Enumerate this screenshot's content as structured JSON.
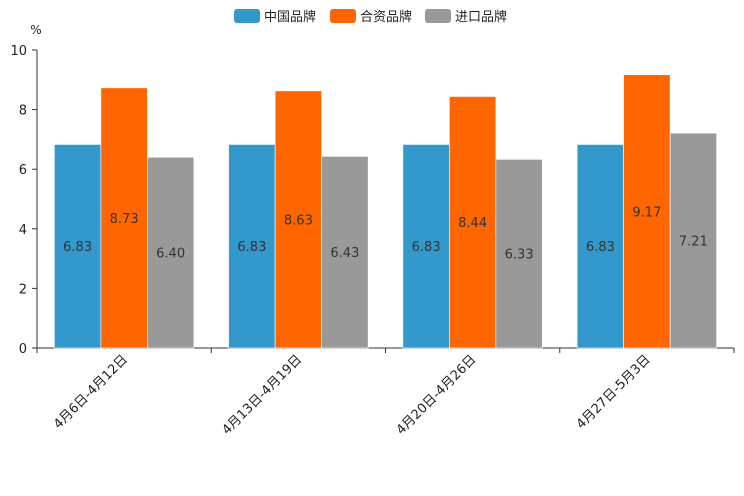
{
  "chart_data": {
    "type": "bar",
    "unit": "%",
    "categories": [
      "4月6日-4月12日",
      "4月13日-4月19日",
      "4月20日-4月26日",
      "4月27日-5月3日"
    ],
    "series": [
      {
        "name": "中国品牌",
        "color": "#3399cc",
        "values": [
          6.83,
          6.83,
          6.83,
          6.83
        ],
        "labels": [
          "6.83",
          "6.83",
          "6.83",
          "6.83"
        ]
      },
      {
        "name": "合资品牌",
        "color": "#ff6600",
        "values": [
          8.73,
          8.63,
          8.44,
          9.17
        ],
        "labels": [
          "8.73",
          "8.63",
          "8.44",
          "9.17"
        ]
      },
      {
        "name": "进口品牌",
        "color": "#999999",
        "values": [
          6.4,
          6.43,
          6.33,
          7.21
        ],
        "labels": [
          "6.40",
          "6.43",
          "6.33",
          "7.21"
        ]
      }
    ],
    "ylim": [
      0,
      10
    ],
    "yticks": [
      0,
      2,
      4,
      6,
      8,
      10
    ],
    "ytick_labels": [
      "0",
      "2",
      "4",
      "6",
      "8",
      "10"
    ],
    "legend_position": "top-center",
    "grid": false
  }
}
